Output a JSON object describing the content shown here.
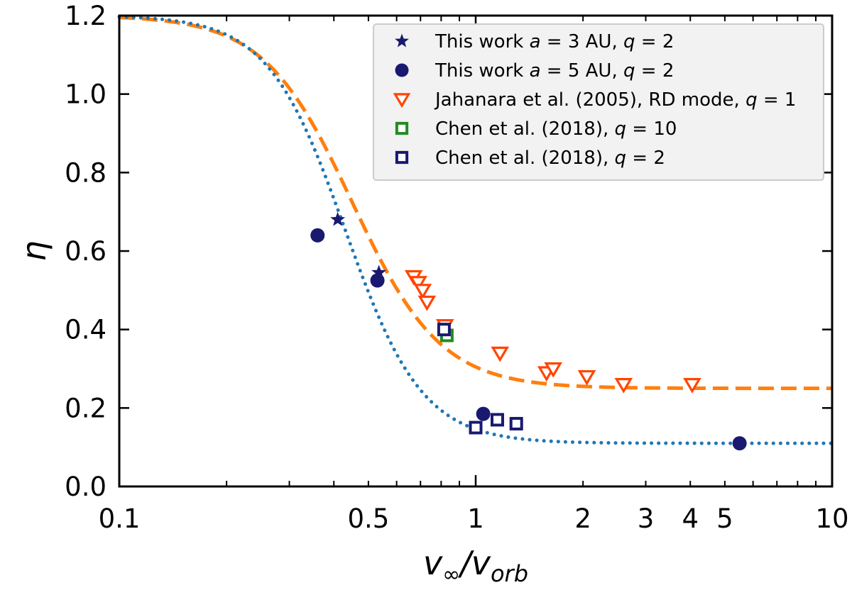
{
  "chart_data": {
    "type": "scatter",
    "xscale": "log",
    "xlim": [
      0.1,
      10
    ],
    "ylim": [
      0.0,
      1.2
    ],
    "xlabel": "v∞/vorb",
    "ylabel": "η",
    "grid": false,
    "legend_position": "top-right",
    "x_ticks": [
      {
        "value": 0.1,
        "label": "0.1"
      },
      {
        "value": 0.5,
        "label": "0.5"
      },
      {
        "value": 1,
        "label": "1"
      },
      {
        "value": 2,
        "label": "2"
      },
      {
        "value": 3,
        "label": "3"
      },
      {
        "value": 4,
        "label": "4"
      },
      {
        "value": 5,
        "label": "5"
      },
      {
        "value": 10,
        "label": "10"
      }
    ],
    "y_ticks": [
      {
        "value": 0.0,
        "label": "0.0"
      },
      {
        "value": 0.2,
        "label": "0.2"
      },
      {
        "value": 0.4,
        "label": "0.4"
      },
      {
        "value": 0.6,
        "label": "0.6"
      },
      {
        "value": 0.8,
        "label": "0.8"
      },
      {
        "value": 1.0,
        "label": "1.0"
      },
      {
        "value": 1.2,
        "label": "1.2"
      }
    ],
    "series": [
      {
        "name": "This work a = 3 AU, q = 2",
        "marker": "star",
        "color": "#191970",
        "points": [
          [
            0.41,
            0.68
          ],
          [
            0.535,
            0.545
          ]
        ]
      },
      {
        "name": "This work a = 5 AU, q = 2",
        "marker": "circle",
        "color": "#191970",
        "points": [
          [
            0.36,
            0.64
          ],
          [
            0.53,
            0.525
          ],
          [
            1.05,
            0.185
          ],
          [
            5.5,
            0.11
          ]
        ]
      },
      {
        "name": "Jahanara et al. (2005), RD mode, q = 1",
        "marker": "triangle-down-open",
        "color": "#ff4500",
        "points": [
          [
            0.67,
            0.535
          ],
          [
            0.69,
            0.52
          ],
          [
            0.71,
            0.5
          ],
          [
            0.73,
            0.47
          ],
          [
            0.82,
            0.41
          ],
          [
            1.17,
            0.34
          ],
          [
            1.58,
            0.29
          ],
          [
            1.65,
            0.3
          ],
          [
            2.05,
            0.28
          ],
          [
            2.6,
            0.26
          ],
          [
            4.05,
            0.26
          ]
        ]
      },
      {
        "name": "Chen et al. (2018), q = 10",
        "marker": "square-open",
        "color": "#228b22",
        "points": [
          [
            0.83,
            0.385
          ]
        ]
      },
      {
        "name": "Chen et al. (2018), q = 2",
        "marker": "square-open",
        "color": "#191970",
        "points": [
          [
            0.815,
            0.4
          ],
          [
            1.0,
            0.15
          ],
          [
            1.15,
            0.17
          ],
          [
            1.3,
            0.16
          ]
        ]
      }
    ],
    "fits": [
      {
        "name": "orange-dashed-fit",
        "color": "#ff7f0e",
        "style": "dashed",
        "eta_max": 1.2,
        "eta_min": 0.25,
        "x_mid": 0.45,
        "steepness": 3.5
      },
      {
        "name": "blue-dotted-fit",
        "color": "#1f77b4",
        "style": "dotted",
        "eta_max": 1.2,
        "eta_min": 0.11,
        "x_mid": 0.43,
        "steepness": 4.0
      }
    ],
    "legend": [
      {
        "prefix": "This work ",
        "math": "a",
        "mid": " = 3 AU, ",
        "math2": "q",
        "suffix": " = 2"
      },
      {
        "prefix": "This work ",
        "math": "a",
        "mid": " = 5 AU, ",
        "math2": "q",
        "suffix": " = 2"
      },
      {
        "prefix": "Jahanara et al. (2005), RD mode, ",
        "math": "q",
        "mid": " = 1",
        "math2": "",
        "suffix": ""
      },
      {
        "prefix": "Chen et al. (2018), ",
        "math": "q",
        "mid": " = 10",
        "math2": "",
        "suffix": ""
      },
      {
        "prefix": "Chen et al. (2018), ",
        "math": "q",
        "mid": " = 2",
        "math2": "",
        "suffix": ""
      }
    ]
  }
}
